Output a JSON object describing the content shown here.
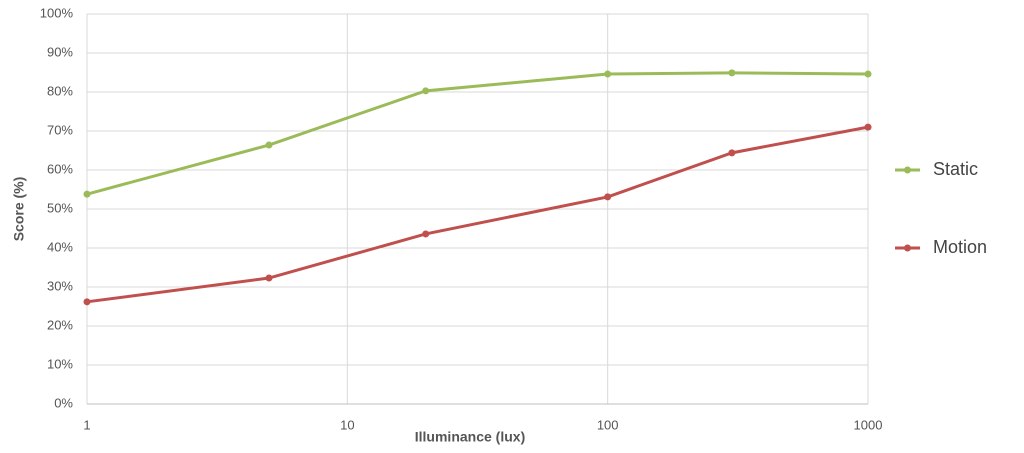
{
  "chart_data": {
    "type": "line",
    "x_label": "Illuminance (lux)",
    "y_label": "Score (%)",
    "x": [
      1,
      5,
      20,
      100,
      300,
      1000
    ],
    "series": [
      {
        "name": "Static",
        "color": "#9bbb59",
        "values": [
          53.8,
          66.4,
          80.3,
          84.6,
          84.9,
          84.6
        ]
      },
      {
        "name": "Motion",
        "color": "#c0504d",
        "values": [
          26.2,
          32.3,
          43.6,
          53.1,
          64.4,
          71.0
        ]
      }
    ],
    "xlim": [
      1,
      1000
    ],
    "xticks": [
      1,
      10,
      100,
      1000
    ],
    "xscale": "log",
    "ylim": [
      0,
      100
    ],
    "yticks": [
      {
        "value": 0,
        "label": "0%"
      },
      {
        "value": 10,
        "label": "10%"
      },
      {
        "value": 20,
        "label": "20%"
      },
      {
        "value": 30,
        "label": "30%"
      },
      {
        "value": 40,
        "label": "40%"
      },
      {
        "value": 50,
        "label": "50%"
      },
      {
        "value": 60,
        "label": "60%"
      },
      {
        "value": 70,
        "label": "70%"
      },
      {
        "value": 80,
        "label": "80%"
      },
      {
        "value": 90,
        "label": "90%"
      },
      {
        "value": 100,
        "label": "100%"
      }
    ],
    "grid": true,
    "legend": "right"
  }
}
